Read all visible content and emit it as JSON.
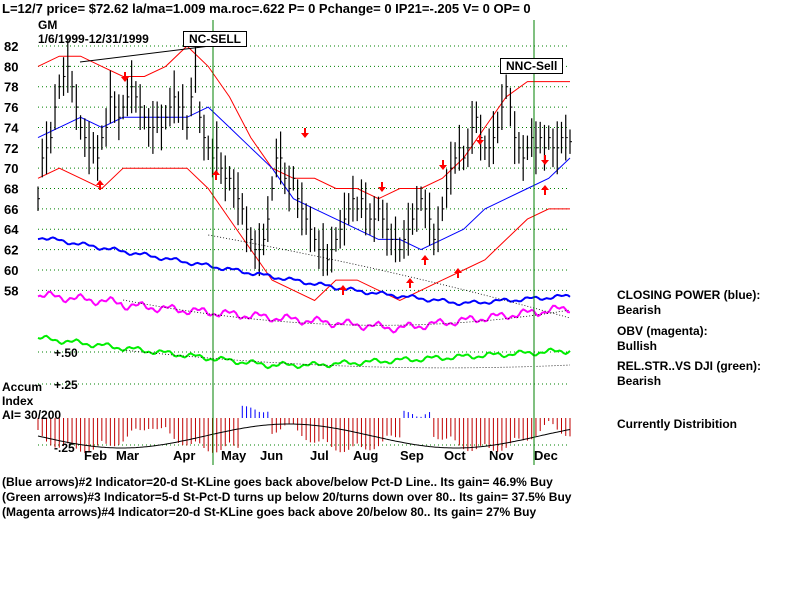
{
  "header": {
    "status_line": "L=12/7  price= $72.62  la/ma=1.009  ma.roc=.622 P=  0 Pchange=  0 IP21=-.205 V= 0 OP= 0",
    "ticker": "GM",
    "date_range": "1/6/1999-12/31/1999"
  },
  "signals": {
    "nc_sell": "NC-SELL",
    "nnc_sell": "NNC-Sell"
  },
  "accum": {
    "title_line1": "Accum",
    "title_line2": "Index",
    "ai_value": "AI= 30/200"
  },
  "right_panel": {
    "closing_power_label": "CLOSING POWER (blue):",
    "closing_power_value": "Bearish",
    "obv_label": "OBV (magenta):",
    "obv_value": "Bullish",
    "relstr_label": "REL.STR..VS DJI (green):",
    "relstr_value": "Bearish",
    "distribution": "Currently Distribition"
  },
  "notes": {
    "line1": "(Blue arrows)#2 Indicator=20-d St-KLine goes back above/below Pct-D Line.. Its gain= 46.9% Buy",
    "line2": "(Green arrows)#3 Indicator=5-d St-Pct-D turns up below 20/turns down over 80.. Its gain= 37.5% Buy",
    "line3": "(Magenta arrows)#4 Indicator=20-d St-KLine goes back above 20/below 80.. Its gain= 27% Buy"
  },
  "colors": {
    "price": "#000000",
    "grid": "#008000",
    "band": "#ff0000",
    "ma": "#0000ff",
    "closing_power": "#0000ff",
    "obv": "#ff00ff",
    "relstr": "#00ee00",
    "accum_bar": "#c00000",
    "accum_pos": "#0000ff",
    "arrow": "#ff0000"
  },
  "chart_data": {
    "type": "line",
    "title": "GM",
    "x_labels": [
      "Feb",
      "Mar",
      "Apr",
      "May",
      "Jun",
      "Jul",
      "Aug",
      "Sep",
      "Oct",
      "Nov",
      "Dec"
    ],
    "y_ticks": [
      58,
      60,
      62,
      64,
      66,
      68,
      70,
      72,
      74,
      76,
      78,
      80,
      82
    ],
    "ylim": [
      57,
      82
    ],
    "lower_ticks": [
      "+.50",
      "+.25",
      "-.25"
    ],
    "series": [
      {
        "name": "price",
        "x": [
          0,
          2,
          4,
          6,
          8,
          10,
          12,
          14,
          16,
          18,
          20,
          22,
          24,
          26,
          28,
          30,
          32,
          34,
          36,
          38,
          40,
          42,
          44,
          46,
          48,
          50,
          52,
          54,
          56,
          58,
          60,
          62,
          64,
          66,
          68,
          70,
          72,
          74,
          76,
          78,
          80,
          82,
          84,
          86,
          88,
          90,
          92,
          94,
          96,
          98,
          100,
          102,
          104,
          106,
          108,
          110,
          112,
          114,
          116,
          118,
          120,
          122,
          124,
          126,
          128,
          130,
          132,
          134,
          136,
          138,
          140,
          142,
          144,
          146,
          148,
          150,
          152,
          154,
          156,
          158,
          160,
          162,
          164,
          166,
          168,
          170,
          172,
          174,
          176,
          178,
          180,
          182,
          184,
          186,
          188,
          190,
          192,
          194,
          196,
          198,
          200,
          202,
          204,
          206,
          208,
          210,
          212,
          214,
          216,
          218,
          220,
          222,
          224,
          226,
          228,
          230,
          232,
          234,
          236,
          238,
          240,
          242,
          244,
          246,
          248,
          250
        ],
        "values": [
          67,
          71,
          72,
          73,
          76,
          78,
          79,
          80,
          78,
          76,
          74,
          73,
          72,
          72,
          71,
          73,
          74,
          77,
          76,
          75,
          76,
          77,
          78,
          77,
          76,
          75,
          74,
          74,
          75,
          74,
          75,
          76,
          77,
          76,
          76,
          74,
          77,
          80,
          75,
          73,
          72,
          71,
          72,
          70,
          69,
          69,
          68,
          67,
          66,
          64,
          63,
          62,
          62,
          63,
          65,
          68,
          71,
          71,
          69,
          68,
          69,
          67,
          66,
          65,
          64,
          63,
          62,
          62,
          61,
          62,
          63,
          64,
          65,
          66,
          67,
          66,
          67,
          66,
          65,
          65,
          66,
          65,
          64,
          63,
          63,
          62,
          63,
          64,
          65,
          66,
          67,
          66,
          65,
          63,
          64,
          66,
          68,
          70,
          71,
          72,
          71,
          72,
          74,
          75,
          73,
          72,
          72,
          73,
          74,
          76,
          78,
          76,
          73,
          72,
          71,
          72,
          73,
          72,
          73,
          72,
          73,
          72,
          72,
          73,
          73,
          72.6
        ]
      },
      {
        "name": "upper_band",
        "x": [
          0,
          10,
          20,
          30,
          40,
          50,
          60,
          70,
          80,
          90,
          100,
          110,
          120,
          130,
          140,
          150,
          160,
          170,
          180,
          190,
          200,
          210,
          220,
          230,
          240,
          250
        ],
        "values": [
          80,
          81,
          81,
          80,
          79,
          79,
          80,
          82,
          80,
          77,
          73,
          70,
          69,
          69,
          68,
          68,
          67,
          68,
          68,
          69,
          71,
          74,
          77,
          78.5,
          78.5,
          78.5
        ]
      },
      {
        "name": "ma",
        "x": [
          0,
          10,
          20,
          30,
          40,
          50,
          60,
          70,
          80,
          90,
          100,
          110,
          120,
          130,
          140,
          150,
          160,
          170,
          180,
          190,
          200,
          210,
          220,
          230,
          240,
          250
        ],
        "values": [
          73,
          74,
          75,
          74,
          75,
          75,
          75,
          75,
          76,
          74,
          72,
          70,
          67,
          66,
          65,
          64,
          63,
          63,
          62,
          63,
          64,
          66,
          67,
          68,
          69,
          71
        ]
      },
      {
        "name": "lower_band",
        "x": [
          0,
          10,
          20,
          30,
          40,
          50,
          60,
          70,
          80,
          90,
          100,
          110,
          120,
          130,
          140,
          150,
          160,
          170,
          180,
          190,
          200,
          210,
          220,
          230,
          240,
          250
        ],
        "values": [
          69,
          70,
          69,
          68,
          70,
          70,
          70,
          70,
          68,
          65,
          62,
          59,
          58,
          57,
          59,
          59,
          58,
          57,
          58,
          59,
          60,
          61,
          63,
          65,
          66,
          66
        ]
      }
    ],
    "grid": true,
    "legend": "none"
  }
}
